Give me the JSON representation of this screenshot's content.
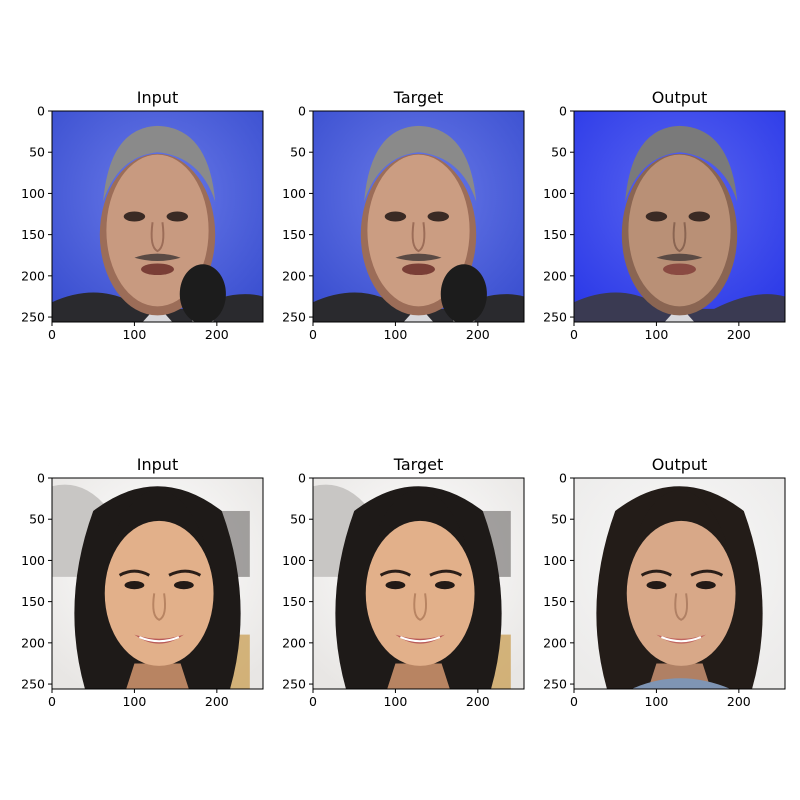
{
  "chart_data": [
    {
      "type": "image",
      "title": "Input",
      "xlabel": "",
      "ylabel": "",
      "xlim": [
        0,
        256
      ],
      "ylim": [
        256,
        0
      ],
      "xticks": [
        0,
        100,
        200
      ],
      "yticks": [
        0,
        50,
        100,
        150,
        200,
        250
      ],
      "grid": false,
      "content": "face-photo",
      "palette": {
        "background": "#3a4fd0",
        "background_light": "#6a7ae8",
        "hair": "#8a8a8a",
        "skin": "#c89a80",
        "skin_shadow": "#9c6d58",
        "suit": "#2a2a2e",
        "microphone": "#1c1c1c",
        "mouth": "#7a3e36"
      }
    },
    {
      "type": "image",
      "title": "Target",
      "xlabel": "",
      "ylabel": "",
      "xlim": [
        0,
        256
      ],
      "ylim": [
        256,
        0
      ],
      "xticks": [
        0,
        100,
        200
      ],
      "yticks": [
        0,
        50,
        100,
        150,
        200,
        250
      ],
      "grid": false,
      "content": "face-photo",
      "palette": {
        "background": "#3a4fd0",
        "background_light": "#6a7ae8",
        "hair": "#8a8a8a",
        "skin": "#cb9d82",
        "skin_shadow": "#9c6d58",
        "suit": "#2a2a2e",
        "microphone": "#1c1c1c",
        "mouth": "#7a3e36"
      }
    },
    {
      "type": "image",
      "title": "Output",
      "xlabel": "",
      "ylabel": "",
      "xlim": [
        0,
        256
      ],
      "ylim": [
        256,
        0
      ],
      "xticks": [
        0,
        100,
        200
      ],
      "yticks": [
        0,
        50,
        100,
        150,
        200,
        250
      ],
      "grid": false,
      "content": "face-photo",
      "palette": {
        "background": "#2c3ae8",
        "background_light": "#5a66f0",
        "hair": "#7a7a7a",
        "skin": "#b99076",
        "skin_shadow": "#8a6552",
        "suit": "#3a3a52",
        "microphone": "",
        "mouth": "#8a4a42"
      }
    },
    {
      "type": "image",
      "title": "Input",
      "xlabel": "",
      "ylabel": "",
      "xlim": [
        0,
        256
      ],
      "ylim": [
        256,
        0
      ],
      "xticks": [
        0,
        100,
        200
      ],
      "yticks": [
        0,
        50,
        100,
        150,
        200,
        250
      ],
      "grid": false,
      "content": "face-photo",
      "palette": {
        "background": "#e8e6e4",
        "background_light": "#ffffff",
        "hair": "#1e1a18",
        "skin": "#e2b08a",
        "skin_shadow": "#b88462",
        "suit": "#1e1a18",
        "microphone": "",
        "mouth": "#b85a58"
      }
    },
    {
      "type": "image",
      "title": "Target",
      "xlabel": "",
      "ylabel": "",
      "xlim": [
        0,
        256
      ],
      "ylim": [
        256,
        0
      ],
      "xticks": [
        0,
        100,
        200
      ],
      "yticks": [
        0,
        50,
        100,
        150,
        200,
        250
      ],
      "grid": false,
      "content": "face-photo",
      "palette": {
        "background": "#e8e6e4",
        "background_light": "#ffffff",
        "hair": "#1e1a18",
        "skin": "#e2b08a",
        "skin_shadow": "#b88462",
        "suit": "#1e1a18",
        "microphone": "",
        "mouth": "#b85a58"
      }
    },
    {
      "type": "image",
      "title": "Output",
      "xlabel": "",
      "ylabel": "",
      "xlim": [
        0,
        256
      ],
      "ylim": [
        256,
        0
      ],
      "xticks": [
        0,
        100,
        200
      ],
      "yticks": [
        0,
        50,
        100,
        150,
        200,
        250
      ],
      "grid": false,
      "content": "face-photo",
      "palette": {
        "background": "#ecebea",
        "background_light": "#f8f8f8",
        "hair": "#231c18",
        "skin": "#d8a888",
        "skin_shadow": "#b08064",
        "suit": "#7f95b4",
        "microphone": "",
        "mouth": "#c06660"
      }
    }
  ]
}
